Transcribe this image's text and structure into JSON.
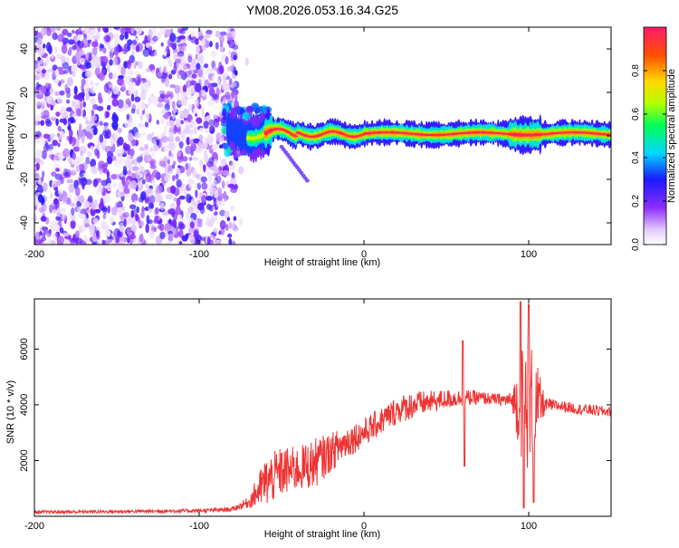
{
  "title": "YM08.2026.053.16.34.G25",
  "chart_data": [
    {
      "type": "heatmap",
      "xlabel": "Height of straight line (km)",
      "ylabel": "Frequency (Hz)",
      "xlim": [
        -200,
        150
      ],
      "ylim": [
        -50,
        50
      ],
      "x_ticks": [
        -200,
        -100,
        0,
        100
      ],
      "y_ticks": [
        -40,
        -20,
        0,
        20,
        40
      ],
      "colorbar": {
        "label": "Normalized spectral amplitude",
        "range": [
          0,
          1
        ],
        "ticks": [
          "0.0",
          "0.2",
          "0.4",
          "0.6",
          "0.8"
        ]
      },
      "description_regions": [
        {
          "x_range": [
            -200,
            -75
          ],
          "pattern": "scattered noise blobs",
          "amplitude": [
            0.0,
            0.25
          ]
        },
        {
          "x_range": [
            -85,
            -60
          ],
          "pattern": "broadened signal around 0 Hz",
          "amplitude": [
            0.2,
            0.5
          ]
        },
        {
          "x_range": [
            -60,
            150
          ],
          "pattern": "narrow band centered near 0-2 Hz",
          "amplitude": [
            0.5,
            1.0
          ]
        }
      ]
    },
    {
      "type": "line",
      "xlabel": "Height of straight line (km)",
      "ylabel": "SNR (10 * v/v)",
      "xlim": [
        -200,
        150
      ],
      "ylim": [
        0,
        7800
      ],
      "x_ticks": [
        -200,
        -100,
        0,
        100
      ],
      "y_ticks": [
        2000,
        4000,
        6000
      ],
      "series": [
        {
          "name": "SNR",
          "color": "#ee3333",
          "x": [
            -200,
            -150,
            -100,
            -80,
            -70,
            -60,
            -55,
            -50,
            -40,
            -30,
            -20,
            -10,
            0,
            10,
            20,
            30,
            40,
            50,
            60,
            70,
            80,
            90,
            95,
            100,
            105,
            110,
            120,
            130,
            140,
            150
          ],
          "mean": [
            150,
            170,
            200,
            250,
            500,
            1200,
            1400,
            1600,
            1700,
            1900,
            2300,
            2700,
            3000,
            3400,
            3800,
            4000,
            4100,
            4200,
            4250,
            4250,
            4200,
            4150,
            4100,
            4000,
            4000,
            4000,
            3950,
            3850,
            3800,
            3750
          ],
          "noise": [
            60,
            60,
            70,
            80,
            200,
            900,
            900,
            900,
            800,
            900,
            700,
            600,
            500,
            500,
            500,
            500,
            400,
            350,
            300,
            250,
            200,
            300,
            2000,
            2500,
            1500,
            250,
            200,
            200,
            200,
            180
          ],
          "features": [
            {
              "x": 60,
              "value": 6300
            },
            {
              "x": 61,
              "value": 1800
            },
            {
              "x": 95,
              "value": 7700
            },
            {
              "x": 97,
              "value": 300
            },
            {
              "x": 100,
              "value": 7600
            },
            {
              "x": 103,
              "value": 500
            }
          ]
        }
      ]
    }
  ]
}
